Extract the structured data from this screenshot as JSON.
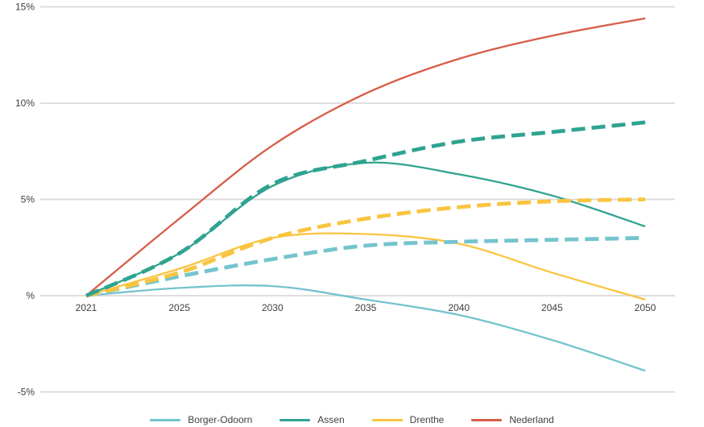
{
  "chart_data": {
    "type": "line",
    "title": "",
    "unit": "percent",
    "grid": "horizontal",
    "background": "#ffffff",
    "gridline_color": "#d9d9d9",
    "tick_label_color": "#3f3f3f",
    "x_labels": [
      "2021",
      "2025",
      "2030",
      "2035",
      "2040",
      "2045",
      "2050"
    ],
    "y_ticks": [
      {
        "value": 15,
        "label": "15%"
      },
      {
        "value": 10,
        "label": "10%"
      },
      {
        "value": 5,
        "label": "5%"
      },
      {
        "value": 0,
        "label": "%"
      },
      {
        "value": -5,
        "label": "-5%"
      }
    ],
    "ylim": [
      -6.5,
      15.2
    ],
    "series": [
      {
        "name": "Borger-Odoorn",
        "variant": "solid",
        "color": "#74c4cd",
        "values": [
          0,
          0.4,
          0.5,
          -0.2,
          -1.0,
          -2.3,
          -3.9
        ]
      },
      {
        "name": "Drenthe",
        "variant": "solid",
        "color": "#f9c440",
        "values": [
          0,
          1.4,
          3.0,
          3.2,
          2.7,
          1.2,
          -0.2
        ]
      },
      {
        "name": "Assen",
        "variant": "solid",
        "color": "#2ea390",
        "values": [
          0,
          2.2,
          5.7,
          6.9,
          6.3,
          5.2,
          3.6
        ]
      },
      {
        "name": "Nederland",
        "variant": "solid",
        "color": "#d85d49",
        "values": [
          0,
          4.0,
          7.8,
          10.5,
          12.3,
          13.5,
          14.4
        ]
      },
      {
        "name": "Borger-Odoorn",
        "variant": "dashed",
        "color": "#74c4cd",
        "values": [
          0,
          1.0,
          1.9,
          2.6,
          2.8,
          2.9,
          3.0
        ]
      },
      {
        "name": "Drenthe",
        "variant": "dashed",
        "color": "#f9c440",
        "values": [
          0,
          1.2,
          3.0,
          4.0,
          4.6,
          4.9,
          5.0
        ]
      },
      {
        "name": "Assen",
        "variant": "dashed",
        "color": "#2ea390",
        "values": [
          0,
          2.2,
          5.8,
          7.0,
          8.0,
          8.5,
          9.0
        ]
      }
    ],
    "legend_position": "bottom",
    "legend_items": [
      {
        "label": "Borger-Odoorn",
        "color": "#74c4cd"
      },
      {
        "label": "Assen",
        "color": "#2ea390"
      },
      {
        "label": "Drenthe",
        "color": "#f9c440"
      },
      {
        "label": "Nederland",
        "color": "#d85d49"
      }
    ]
  }
}
